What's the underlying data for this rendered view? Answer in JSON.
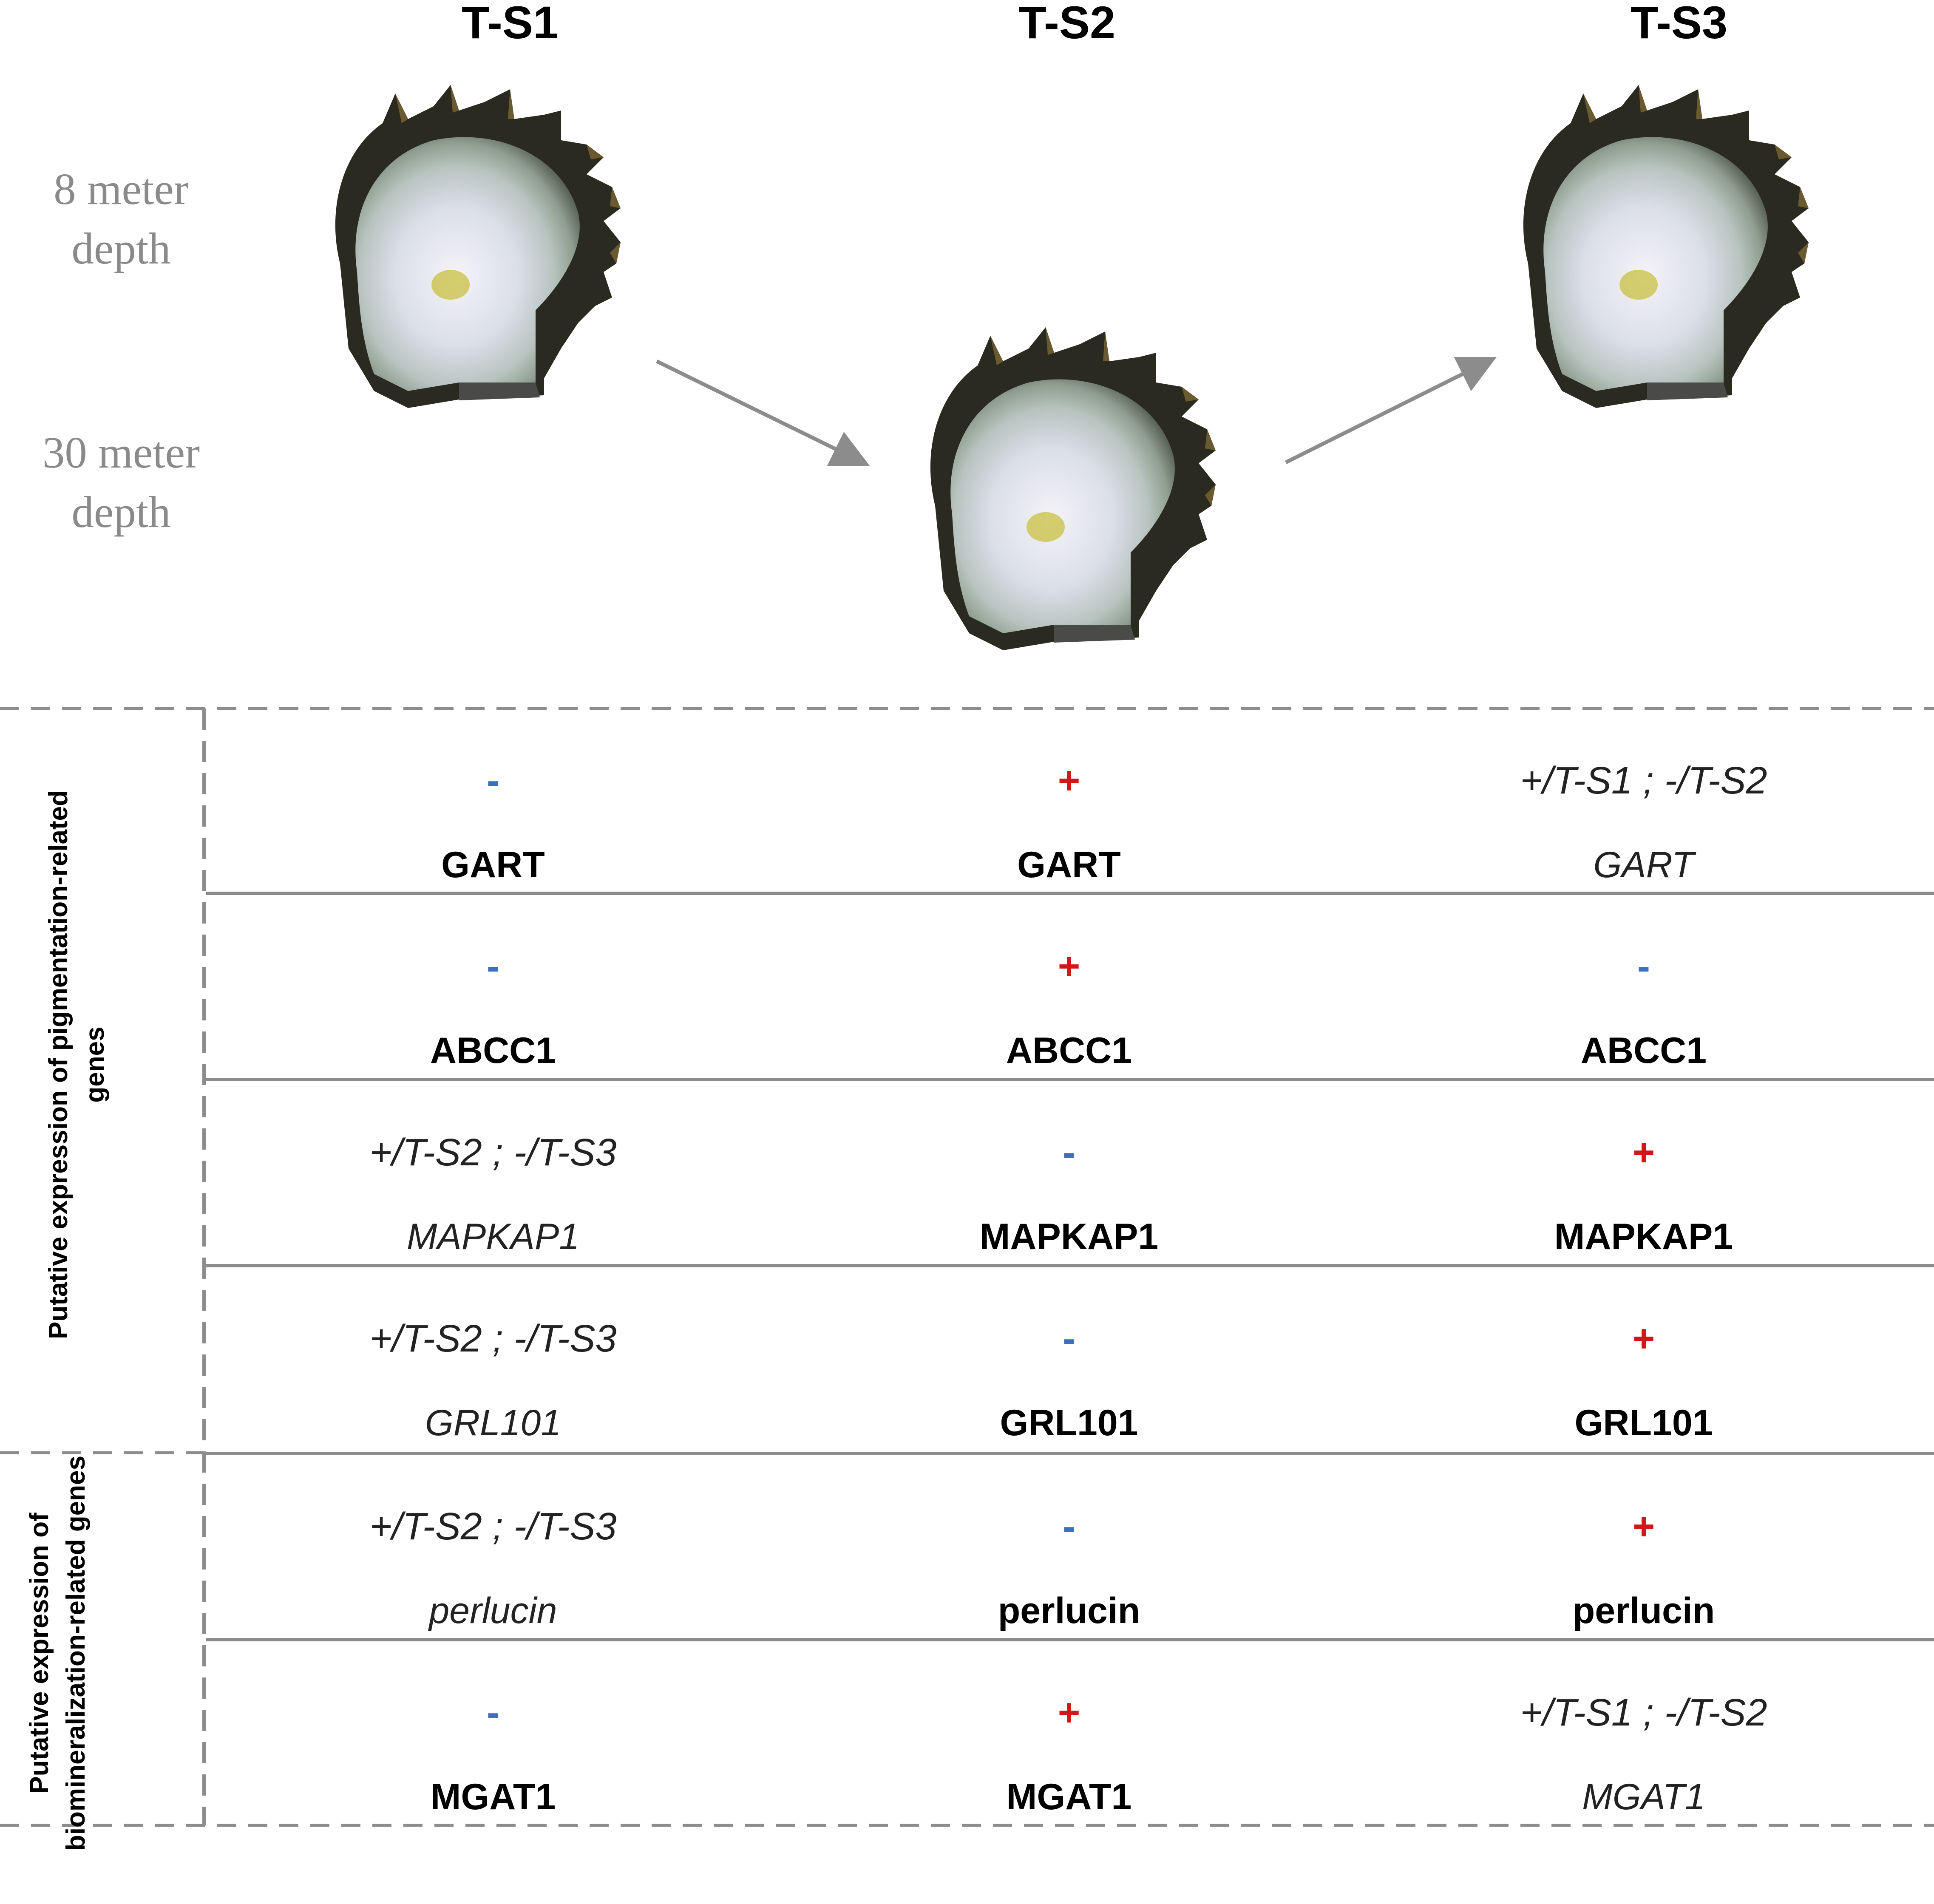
{
  "stages": [
    "T-S1",
    "T-S2",
    "T-S3"
  ],
  "depths": {
    "shallow": "8 meter depth",
    "deep": "30 meter depth"
  },
  "groups": [
    {
      "label": "Putative expression of pigmentation-related genes"
    },
    {
      "label": "Putative expression of biomineralization-related genes"
    }
  ],
  "rows": [
    {
      "gene": "GART",
      "cells": [
        {
          "sign": "-",
          "sign_type": "minus",
          "gene": "GART",
          "style": "bold"
        },
        {
          "sign": "+",
          "sign_type": "plus",
          "gene": "GART",
          "style": "bold"
        },
        {
          "sign": "+/T-S1 ; -/T-S2",
          "sign_type": "mixed",
          "gene": "GART",
          "style": "italic"
        }
      ]
    },
    {
      "gene": "ABCC1",
      "cells": [
        {
          "sign": "-",
          "sign_type": "minus",
          "gene": "ABCC1",
          "style": "bold"
        },
        {
          "sign": "+",
          "sign_type": "plus",
          "gene": "ABCC1",
          "style": "bold"
        },
        {
          "sign": "-",
          "sign_type": "minus",
          "gene": "ABCC1",
          "style": "bold"
        }
      ]
    },
    {
      "gene": "MAPKAP1",
      "cells": [
        {
          "sign": "+/T-S2 ; -/T-S3",
          "sign_type": "mixed",
          "gene": "MAPKAP1",
          "style": "italic"
        },
        {
          "sign": "-",
          "sign_type": "minus",
          "gene": "MAPKAP1",
          "style": "bold"
        },
        {
          "sign": "+",
          "sign_type": "plus",
          "gene": "MAPKAP1",
          "style": "bold"
        }
      ]
    },
    {
      "gene": "GRL101",
      "cells": [
        {
          "sign": "+/T-S2 ; -/T-S3",
          "sign_type": "mixed",
          "gene": "GRL101",
          "style": "italic"
        },
        {
          "sign": "-",
          "sign_type": "minus",
          "gene": "GRL101",
          "style": "bold"
        },
        {
          "sign": "+",
          "sign_type": "plus",
          "gene": "GRL101",
          "style": "bold"
        }
      ]
    },
    {
      "gene": "perlucin",
      "cells": [
        {
          "sign": "+/T-S2 ; -/T-S3",
          "sign_type": "mixed",
          "gene": "perlucin",
          "style": "italic"
        },
        {
          "sign": "-",
          "sign_type": "minus",
          "gene": "perlucin",
          "style": "bold"
        },
        {
          "sign": "+",
          "sign_type": "plus",
          "gene": "perlucin",
          "style": "bold"
        }
      ]
    },
    {
      "gene": "MGAT1",
      "cells": [
        {
          "sign": "-",
          "sign_type": "minus",
          "gene": "MGAT1",
          "style": "bold"
        },
        {
          "sign": "+",
          "sign_type": "plus",
          "gene": "MGAT1",
          "style": "bold"
        },
        {
          "sign": "+/T-S1 ; -/T-S2",
          "sign_type": "mixed",
          "gene": "MGAT1",
          "style": "italic"
        }
      ]
    }
  ],
  "colors": {
    "minus": "#3b6fc0",
    "plus": "#d01818",
    "depth_text": "#8a8a8a",
    "lines": "#8c8c8c"
  }
}
